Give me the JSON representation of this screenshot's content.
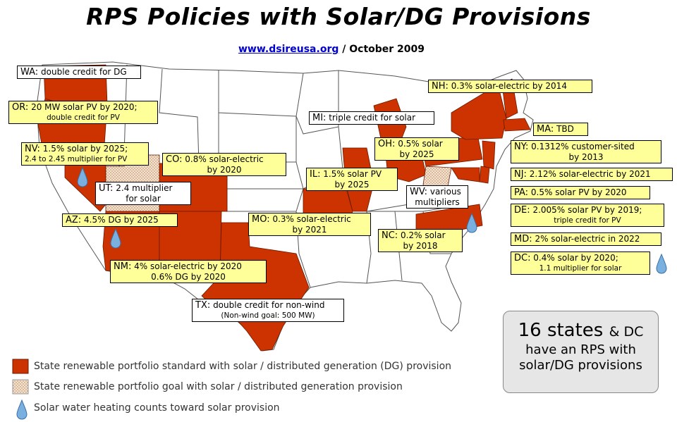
{
  "header": {
    "title": "RPS Policies with Solar/DG Provisions",
    "link": "www.dsireusa.org",
    "date": "/ October 2009"
  },
  "colors": {
    "rps_standard": "#cc3300",
    "rps_goal_pattern": "#f2ddc6",
    "label_bg": "#ffff99",
    "water_drop": "#7ab0e0"
  },
  "labels": {
    "wa": {
      "abbr": "WA:",
      "text": "double credit for DG"
    },
    "or": {
      "abbr": "OR:",
      "line1": "20 MW solar PV by 2020;",
      "line2": "double credit for PV"
    },
    "nv": {
      "abbr": "NV:",
      "line1": "1.5% solar by 2025;",
      "line2": "2.4 to 2.45 multiplier for PV"
    },
    "ut": {
      "abbr": "UT:",
      "line1": "2.4 multiplier",
      "line2": "for solar"
    },
    "co": {
      "abbr": "CO:",
      "line1": "0.8% solar-electric",
      "line2": "by 2020"
    },
    "az": {
      "abbr": "AZ:",
      "text": "4.5% DG by 2025"
    },
    "nm": {
      "abbr": "NM:",
      "line1": "4% solar-electric by 2020",
      "line2": "0.6% DG by 2020"
    },
    "tx": {
      "abbr": "TX:",
      "line1": "double credit for non-wind",
      "line2": "(Non-wind goal: 500 MW)"
    },
    "mi": {
      "abbr": "MI:",
      "text": "triple credit for solar"
    },
    "il": {
      "abbr": "IL:",
      "line1": "1.5% solar PV",
      "line2": "by 2025"
    },
    "mo": {
      "abbr": "MO:",
      "line1": "0.3% solar-electric",
      "line2": "by 2021"
    },
    "oh": {
      "abbr": "OH:",
      "line1": "0.5% solar",
      "line2": "by 2025"
    },
    "wv": {
      "abbr": "WV:",
      "line1": "various",
      "line2": "multipliers"
    },
    "nc": {
      "abbr": "NC:",
      "line1": "0.2% solar",
      "line2": "by 2018"
    },
    "nh": {
      "abbr": "NH:",
      "text": "0.3% solar-electric by 2014"
    },
    "ma": {
      "abbr": "MA:",
      "text": "TBD"
    },
    "ny": {
      "abbr": "NY:",
      "line1": "0.1312% customer-sited",
      "line2": "by 2013"
    },
    "nj": {
      "abbr": "NJ:",
      "text": "2.12% solar-electric by 2021"
    },
    "pa": {
      "abbr": "PA:",
      "text": "0.5% solar PV by 2020"
    },
    "de": {
      "abbr": "DE:",
      "line1": "2.005% solar PV by 2019;",
      "line2": "triple credit for PV"
    },
    "md": {
      "abbr": "MD:",
      "text": "2% solar-electric in 2022"
    },
    "dc": {
      "abbr": "DC:",
      "line1": "0.4% solar by 2020;",
      "line2": "1.1 multiplier for solar"
    }
  },
  "legend": [
    {
      "text": "State renewable portfolio standard with solar / distributed generation (DG) provision"
    },
    {
      "text": "State renewable portfolio goal with solar / distributed generation provision"
    },
    {
      "text": "Solar water heating counts toward solar provision"
    }
  ],
  "summary": {
    "count": "16 states",
    "suffix": "& DC",
    "line2": "have an RPS with",
    "line3": "solar/DG provisions"
  }
}
